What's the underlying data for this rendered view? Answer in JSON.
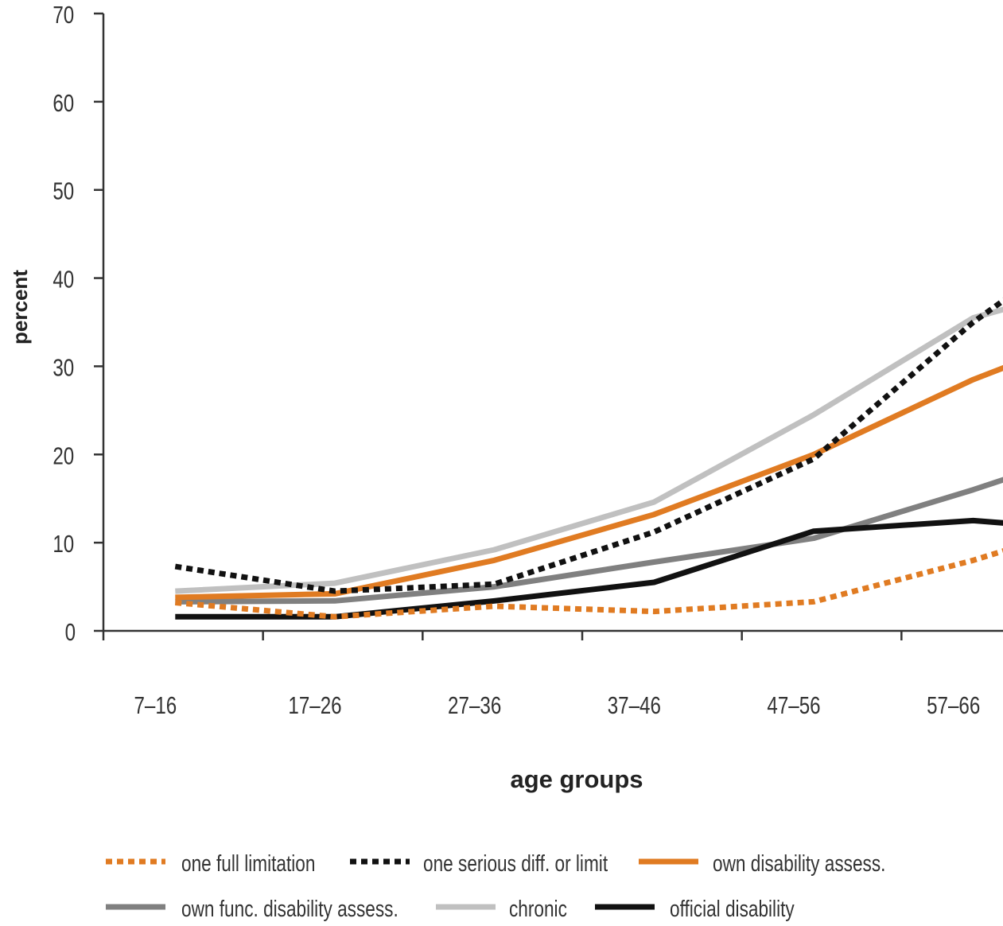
{
  "chart_data": {
    "type": "line",
    "title": "",
    "xlabel": "age groups",
    "ylabel": "percent",
    "categories": [
      "7–16",
      "17–26",
      "27–36",
      "37–46",
      "47–56",
      "57–66"
    ],
    "y_ticks": [
      "0",
      "10",
      "20",
      "30",
      "40",
      "50",
      "60",
      "70"
    ],
    "ylim": [
      0,
      70
    ],
    "grid": false,
    "legend_position": "bottom",
    "series": [
      {
        "name": "one full limitation",
        "color": "#e07b22",
        "style": "dotted",
        "x": [
          11.5,
          21.5,
          31.5,
          41.5,
          51.5,
          61.5,
          66.5
        ],
        "values": [
          3.2,
          1.6,
          2.8,
          2.2,
          3.3,
          8.0,
          10.8
        ]
      },
      {
        "name": "one serious diff. or limit",
        "color": "#111111",
        "style": "dotted",
        "x": [
          11.5,
          21.5,
          31.5,
          41.5,
          51.5,
          61.5,
          66.5
        ],
        "values": [
          7.3,
          4.5,
          5.3,
          11.2,
          19.5,
          35.0,
          41.5
        ]
      },
      {
        "name": "own disability assess.",
        "color": "#e07b22",
        "style": "solid",
        "x": [
          11.5,
          21.5,
          31.5,
          41.5,
          51.5,
          61.5,
          66.5
        ],
        "values": [
          3.8,
          4.2,
          8.0,
          13.2,
          20.0,
          28.5,
          32.0
        ]
      },
      {
        "name": "own func. disability assess.",
        "color": "#808080",
        "style": "solid",
        "x": [
          11.5,
          21.5,
          31.5,
          41.5,
          51.5,
          61.5,
          66.5
        ],
        "values": [
          3.3,
          3.4,
          5.0,
          7.8,
          10.5,
          16.0,
          19.0
        ]
      },
      {
        "name": "chronic",
        "color": "#c0c0c0",
        "style": "solid",
        "x": [
          11.5,
          21.5,
          31.5,
          41.5,
          51.5,
          61.5,
          66.5
        ],
        "values": [
          4.5,
          5.4,
          9.2,
          14.6,
          24.5,
          35.5,
          38.0
        ]
      },
      {
        "name": "official disability",
        "color": "#111111",
        "style": "solid",
        "x": [
          11.5,
          21.5,
          31.5,
          41.5,
          51.5,
          61.5,
          66.5
        ],
        "values": [
          1.6,
          1.6,
          3.4,
          5.5,
          11.3,
          12.5,
          11.8
        ]
      }
    ]
  }
}
